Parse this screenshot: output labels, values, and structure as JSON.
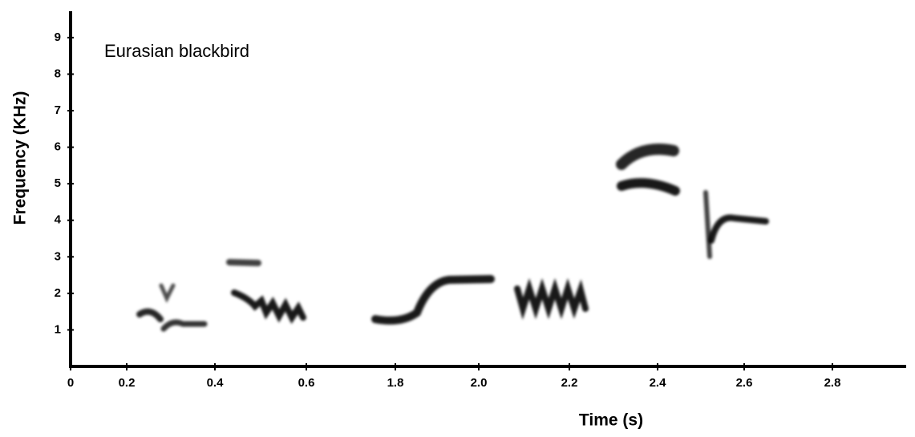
{
  "chart_data": {
    "type": "spectrogram",
    "title": "Eurasian blackbird",
    "x_label": "Time (s)",
    "y_label": "Frequency (KHz)",
    "categories": [
      "0",
      "0.2",
      "0.4",
      "0.6",
      "1.8",
      "2.0",
      "2.2",
      "2.4",
      "2.6",
      "2.8"
    ],
    "ylim": [
      0,
      9.7
    ],
    "yticks": [
      1,
      2,
      3,
      4,
      5,
      6,
      7,
      8,
      9
    ],
    "color": "#000000"
  }
}
